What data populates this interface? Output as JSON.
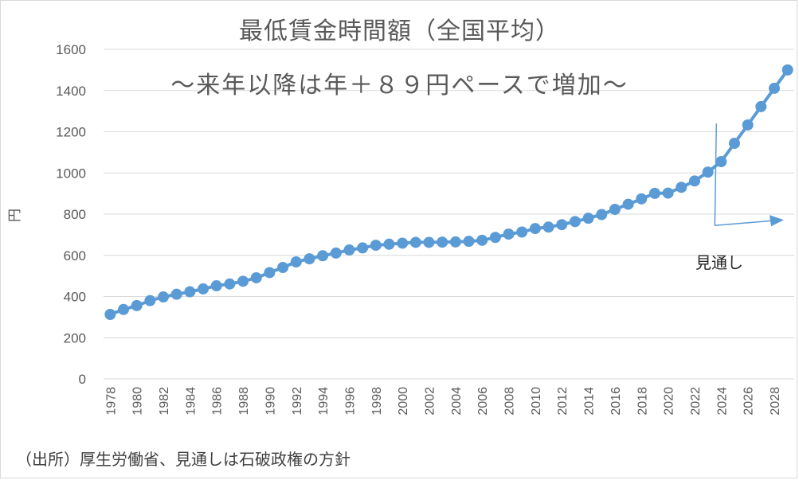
{
  "chart_data": {
    "type": "line",
    "title": "最低賃金時間額（全国平均）",
    "subtitle": "～来年以降は年＋８９円ペースで増加～",
    "ylabel": "円",
    "ylim": [
      0,
      1600
    ],
    "yticks": [
      0,
      200,
      400,
      600,
      800,
      1000,
      1200,
      1400,
      1600
    ],
    "grid": true,
    "legend": "none",
    "x": [
      1978,
      1979,
      1980,
      1981,
      1982,
      1983,
      1984,
      1985,
      1986,
      1987,
      1988,
      1989,
      1990,
      1991,
      1992,
      1993,
      1994,
      1995,
      1996,
      1997,
      1998,
      1999,
      2000,
      2001,
      2002,
      2003,
      2004,
      2005,
      2006,
      2007,
      2008,
      2009,
      2010,
      2011,
      2012,
      2013,
      2014,
      2015,
      2016,
      2017,
      2018,
      2019,
      2020,
      2021,
      2022,
      2023,
      2024,
      2025,
      2026,
      2027,
      2028,
      2029
    ],
    "xtick_labels": [
      "1978",
      "1980",
      "1982",
      "1984",
      "1986",
      "1988",
      "1990",
      "1992",
      "1994",
      "1996",
      "1998",
      "2000",
      "2002",
      "2004",
      "2006",
      "2008",
      "2010",
      "2012",
      "2014",
      "2016",
      "2018",
      "2020",
      "2022",
      "2024",
      "2026",
      "2028"
    ],
    "series": [
      {
        "values": [
          313,
          337,
          356,
          380,
          398,
          411,
          423,
          437,
          452,
          461,
          474,
          491,
          516,
          541,
          568,
          583,
          598,
          611,
          626,
          636,
          649,
          654,
          659,
          663,
          663,
          664,
          665,
          668,
          673,
          687,
          703,
          713,
          730,
          737,
          749,
          764,
          780,
          798,
          823,
          848,
          874,
          901,
          902,
          930,
          961,
          1004,
          1055,
          1144,
          1233,
          1322,
          1411,
          1500
        ],
        "color": "#5B9BD5"
      }
    ],
    "annotation": "見通し",
    "source": "（出所）厚生労働省、見通しは石破政権の方針"
  }
}
